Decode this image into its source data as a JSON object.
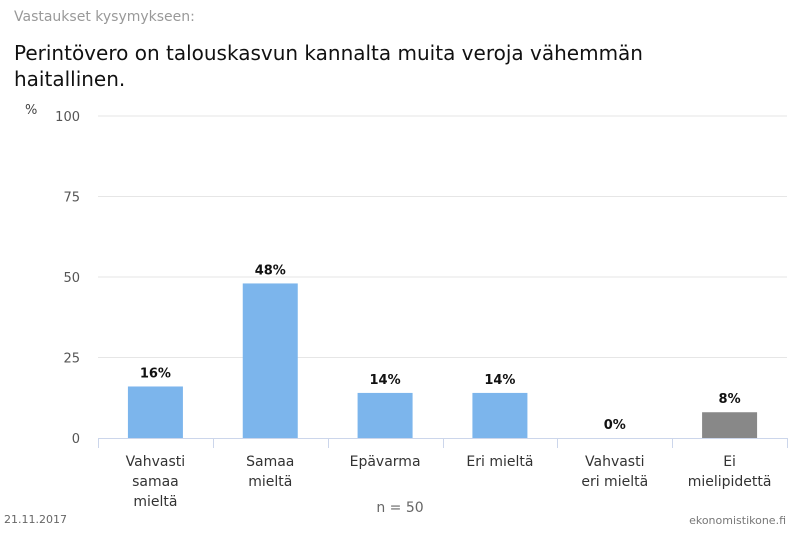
{
  "subtitle": "Vastaukset kysymykseen:",
  "title": "Perintövero on talouskasvun kannalta muita veroja vähemmän haitallinen.",
  "date": "21.11.2017",
  "source": "ekonomistikone.fi",
  "chart_data": {
    "type": "bar",
    "ylabel": "%",
    "ylim": [
      0,
      100
    ],
    "yticks": [
      0,
      25,
      50,
      75,
      100
    ],
    "grid": true,
    "xlabel": "n = 50",
    "categories": [
      "Vahvasti samaa mieltä",
      "Samaa mieltä",
      "Epävarma",
      "Eri mieltä",
      "Vahvasti eri mieltä",
      "Ei mielipidettä"
    ],
    "values": [
      16,
      48,
      14,
      14,
      0,
      8
    ],
    "data_labels": [
      "16%",
      "48%",
      "14%",
      "14%",
      "0%",
      "8%"
    ],
    "colors": [
      "#7cb5ec",
      "#7cb5ec",
      "#7cb5ec",
      "#7cb5ec",
      "#7cb5ec",
      "#888888"
    ]
  }
}
